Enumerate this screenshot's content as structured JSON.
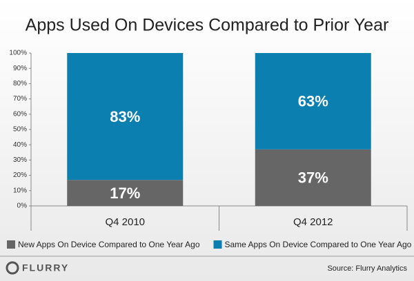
{
  "chart_data": {
    "type": "stacked-bar",
    "title": "Apps Used On Devices Compared to Prior Year",
    "categories": [
      "Q4 2010",
      "Q4 2012"
    ],
    "series": [
      {
        "name": "New Apps On Device Compared to One Year Ago",
        "color": "#666666",
        "values": [
          17,
          37
        ],
        "value_labels": [
          "17%",
          "37%"
        ]
      },
      {
        "name": "Same Apps On Device Compared to One Year Ago",
        "color": "#0b7fb0",
        "values": [
          83,
          63
        ],
        "value_labels": [
          "83%",
          "63%"
        ]
      }
    ],
    "ylim": [
      0,
      100
    ],
    "yticks": [
      {
        "value": 0,
        "label": "0%"
      },
      {
        "value": 10,
        "label": "10%"
      },
      {
        "value": 20,
        "label": "20%"
      },
      {
        "value": 30,
        "label": "30%"
      },
      {
        "value": 40,
        "label": "40%"
      },
      {
        "value": 50,
        "label": "50%"
      },
      {
        "value": 60,
        "label": "60%"
      },
      {
        "value": 70,
        "label": "70%"
      },
      {
        "value": 80,
        "label": "80%"
      },
      {
        "value": 90,
        "label": "90%"
      },
      {
        "value": 100,
        "label": "100%"
      }
    ],
    "legend": "bottom",
    "logo": "FLURRY",
    "source": "Source: Flurry Analytics"
  }
}
